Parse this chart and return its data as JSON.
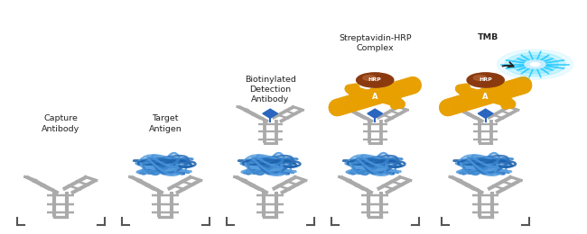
{
  "background_color": "#ffffff",
  "positions": [
    0.1,
    0.28,
    0.46,
    0.64,
    0.83
  ],
  "labels": [
    "Capture\nAntibody",
    "Target\nAntigen",
    "Biotinylated\nDetection\nAntibody",
    "Streptavidin-HRP\nComplex",
    "TMB"
  ],
  "ab_color": "#aaaaaa",
  "ab_lw": 3.5,
  "ag_color": "#3a85cc",
  "ag_line_color": "#1a55aa",
  "biotin_color": "#2255aa",
  "hrp_color": "#8B3a10",
  "strep_color": "#E8A000",
  "tmb_core": "#87CEFA",
  "tmb_glow": "#00CFFF",
  "bracket_color": "#555555",
  "text_color": "#222222",
  "fontsize": 6.8
}
